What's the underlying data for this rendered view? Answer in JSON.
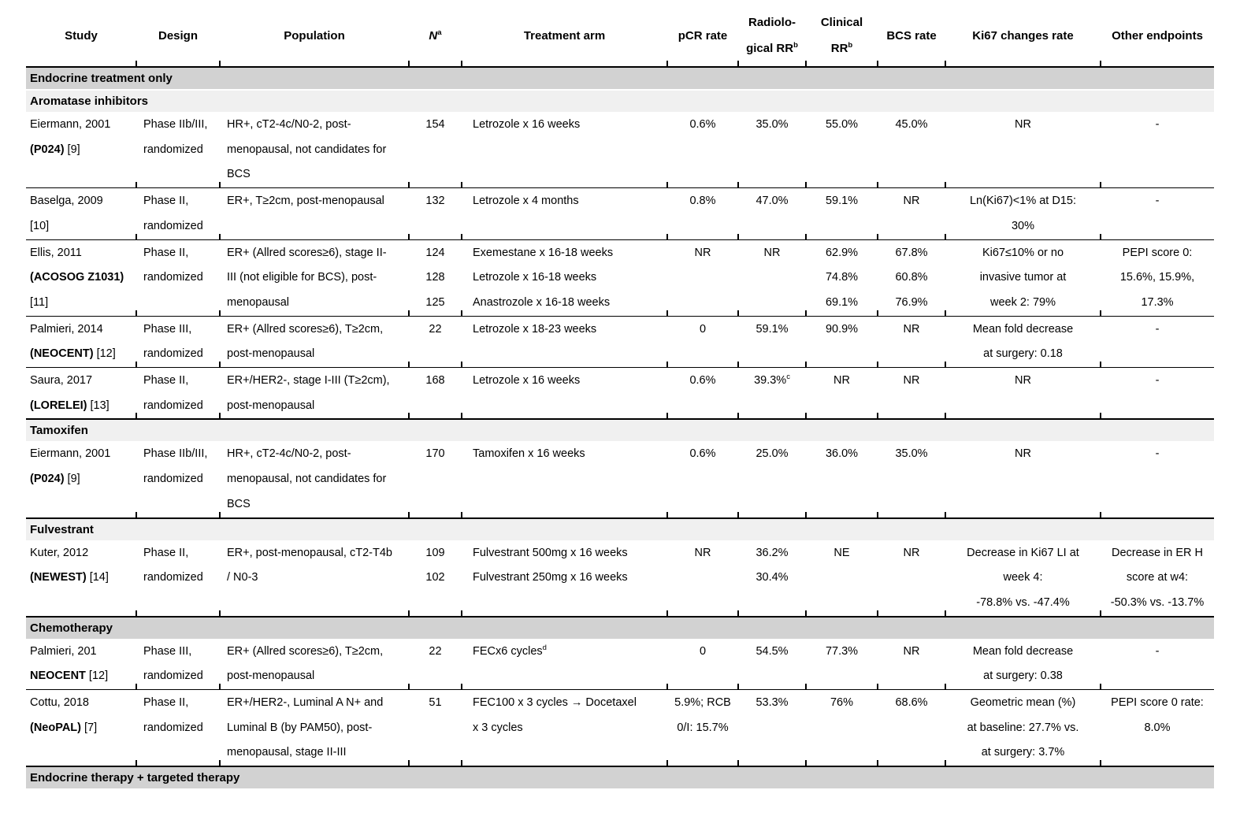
{
  "table": {
    "columns": [
      {
        "key": "study",
        "label_lines": [
          "Study"
        ]
      },
      {
        "key": "design",
        "label_lines": [
          "Design"
        ]
      },
      {
        "key": "population",
        "label_lines": [
          "Population"
        ]
      },
      {
        "key": "n",
        "label_lines": [
          "*N*^a"
        ]
      },
      {
        "key": "treatment",
        "label_lines": [
          "Treatment arm"
        ]
      },
      {
        "key": "pcr",
        "label_lines": [
          "pCR rate"
        ]
      },
      {
        "key": "rad",
        "label_lines": [
          "Radiolo-",
          "gical RR^b"
        ]
      },
      {
        "key": "clin",
        "label_lines": [
          "Clinical",
          "RR^b"
        ]
      },
      {
        "key": "bcs",
        "label_lines": [
          "BCS rate"
        ]
      },
      {
        "key": "ki67",
        "label_lines": [
          "Ki67 changes rate"
        ]
      },
      {
        "key": "other",
        "label_lines": [
          "Other endpoints"
        ]
      }
    ],
    "section_colors": {
      "major": "#d2d2d2",
      "sub": "#f0f0f0"
    },
    "rows": [
      {
        "type": "section",
        "level": "major",
        "label": "Endocrine treatment only"
      },
      {
        "type": "section",
        "level": "sub",
        "label": "Aromatase inhibitors"
      },
      {
        "type": "study",
        "cells": {
          "study": [
            "Eiermann, 2001",
            "**(P024)** [9]"
          ],
          "design": [
            "Phase IIb/III,",
            "randomized"
          ],
          "population": [
            "HR+, cT2-4c/N0-2, post-",
            "menopausal, not candidates for",
            "BCS"
          ],
          "n": [
            "154"
          ],
          "treatment": [
            "Letrozole x 16 weeks"
          ],
          "pcr": [
            "0.6%"
          ],
          "rad": [
            "35.0%"
          ],
          "clin": [
            "55.0%"
          ],
          "bcs": [
            "45.0%"
          ],
          "ki67": [
            "NR"
          ],
          "other": [
            "-"
          ]
        }
      },
      {
        "type": "study",
        "cells": {
          "study": [
            "Baselga, 2009",
            "[10]"
          ],
          "design": [
            "Phase II,",
            "randomized"
          ],
          "population": [
            "ER+, T≥2cm, post-menopausal"
          ],
          "n": [
            "132"
          ],
          "treatment": [
            "Letrozole x 4 months"
          ],
          "pcr": [
            "0.8%"
          ],
          "rad": [
            "47.0%"
          ],
          "clin": [
            "59.1%"
          ],
          "bcs": [
            "NR"
          ],
          "ki67": [
            "Ln(Ki67)<1% at D15:",
            "30%"
          ],
          "other": [
            "-"
          ]
        }
      },
      {
        "type": "study",
        "cells": {
          "study": [
            "Ellis, 2011",
            "**(ACOSOG Z1031)**",
            "[11]"
          ],
          "design": [
            "Phase II,",
            "randomized"
          ],
          "population": [
            "ER+ (Allred scores≥6), stage II-",
            "III (not eligible for BCS), post-",
            "menopausal"
          ],
          "n": [
            "124",
            "128",
            "125"
          ],
          "treatment": [
            "Exemestane x 16-18 weeks",
            "Letrozole x 16-18 weeks",
            "Anastrozole x 16-18 weeks"
          ],
          "pcr": [
            "NR"
          ],
          "rad": [
            "NR"
          ],
          "clin": [
            "62.9%",
            "74.8%",
            "69.1%"
          ],
          "bcs": [
            "67.8%",
            "60.8%",
            "76.9%"
          ],
          "ki67": [
            "Ki67≤10% or no",
            "invasive tumor at",
            "week 2: 79%"
          ],
          "other": [
            "PEPI score 0:",
            "15.6%, 15.9%,",
            "17.3%"
          ]
        }
      },
      {
        "type": "study",
        "cells": {
          "study": [
            "Palmieri, 2014",
            "**(NEOCENT)** [12]"
          ],
          "design": [
            "Phase III,",
            "randomized"
          ],
          "population": [
            "ER+ (Allred scores≥6), T≥2cm,",
            "post-menopausal"
          ],
          "n": [
            "22"
          ],
          "treatment": [
            "Letrozole x 18-23 weeks"
          ],
          "pcr": [
            "0"
          ],
          "rad": [
            "59.1%"
          ],
          "clin": [
            "90.9%"
          ],
          "bcs": [
            "NR"
          ],
          "ki67": [
            "Mean fold decrease",
            "at surgery: 0.18"
          ],
          "other": [
            "-"
          ]
        }
      },
      {
        "type": "study",
        "cells": {
          "study": [
            "Saura, 2017",
            "**(LORELEI)** [13]"
          ],
          "design": [
            "Phase II,",
            "randomized"
          ],
          "population": [
            "ER+/HER2-, stage I-III (T≥2cm),",
            "post-menopausal"
          ],
          "n": [
            "168"
          ],
          "treatment": [
            "Letrozole x 16 weeks"
          ],
          "pcr": [
            "0.6%"
          ],
          "rad": [
            "39.3%^c"
          ],
          "clin": [
            "NR"
          ],
          "bcs": [
            "NR"
          ],
          "ki67": [
            "NR"
          ],
          "other": [
            "-"
          ]
        }
      },
      {
        "type": "section",
        "level": "sub",
        "label": "Tamoxifen"
      },
      {
        "type": "study",
        "cells": {
          "study": [
            "Eiermann, 2001",
            "**(P024)** [9]"
          ],
          "design": [
            "Phase IIb/III,",
            "randomized"
          ],
          "population": [
            "HR+, cT2-4c/N0-2, post-",
            "menopausal, not candidates for",
            "BCS"
          ],
          "n": [
            "170"
          ],
          "treatment": [
            "Tamoxifen x 16 weeks"
          ],
          "pcr": [
            "0.6%"
          ],
          "rad": [
            "25.0%"
          ],
          "clin": [
            "36.0%"
          ],
          "bcs": [
            "35.0%"
          ],
          "ki67": [
            "NR"
          ],
          "other": [
            "-"
          ]
        }
      },
      {
        "type": "section",
        "level": "sub",
        "label": "Fulvestrant"
      },
      {
        "type": "study",
        "cells": {
          "study": [
            "Kuter, 2012",
            "**(NEWEST)** [14]"
          ],
          "design": [
            "Phase II,",
            "randomized"
          ],
          "population": [
            "ER+, post-menopausal, cT2-T4b",
            "/ N0-3"
          ],
          "n": [
            "109",
            "102"
          ],
          "treatment": [
            "Fulvestrant 500mg x 16 weeks",
            "Fulvestrant 250mg x 16 weeks"
          ],
          "pcr": [
            "NR"
          ],
          "rad": [
            "36.2%",
            "30.4%"
          ],
          "clin": [
            "NE"
          ],
          "bcs": [
            "NR"
          ],
          "ki67": [
            "Decrease in Ki67 LI at",
            "week 4:",
            "-78.8% vs. -47.4%"
          ],
          "other": [
            "Decrease in ER H",
            "score at w4:",
            "-50.3% vs. -13.7%"
          ]
        }
      },
      {
        "type": "section",
        "level": "major",
        "label": "Chemotherapy"
      },
      {
        "type": "study",
        "cells": {
          "study": [
            "Palmieri, 201",
            "**NEOCENT** [12]"
          ],
          "design": [
            "Phase III,",
            "randomized"
          ],
          "population": [
            "ER+ (Allred scores≥6), T≥2cm,",
            "post-menopausal"
          ],
          "n": [
            "22"
          ],
          "treatment": [
            "FECx6 cycles^d"
          ],
          "pcr": [
            "0"
          ],
          "rad": [
            "54.5%"
          ],
          "clin": [
            "77.3%"
          ],
          "bcs": [
            "NR"
          ],
          "ki67": [
            "Mean fold decrease",
            "at surgery: 0.38"
          ],
          "other": [
            "-"
          ]
        }
      },
      {
        "type": "study",
        "cells": {
          "study": [
            "Cottu, 2018",
            "**(NeoPAL)** [7]"
          ],
          "design": [
            "Phase II,",
            "randomized"
          ],
          "population": [
            "ER+/HER2-, Luminal A N+ and",
            "Luminal B (by PAM50), post-",
            "menopausal, stage II-III"
          ],
          "n": [
            "51"
          ],
          "treatment": [
            "FEC100 x 3 cycles → Docetaxel",
            "x 3 cycles"
          ],
          "pcr": [
            "5.9%; RCB",
            "0/I: 15.7%"
          ],
          "rad": [
            "53.3%"
          ],
          "clin": [
            "76%"
          ],
          "bcs": [
            "68.6%"
          ],
          "ki67": [
            "Geometric mean (%)",
            "at baseline: 27.7% vs.",
            "at surgery: 3.7%"
          ],
          "other": [
            "PEPI score 0 rate:",
            "8.0%"
          ]
        }
      },
      {
        "type": "section",
        "level": "major",
        "label": "Endocrine therapy + targeted therapy"
      }
    ]
  }
}
